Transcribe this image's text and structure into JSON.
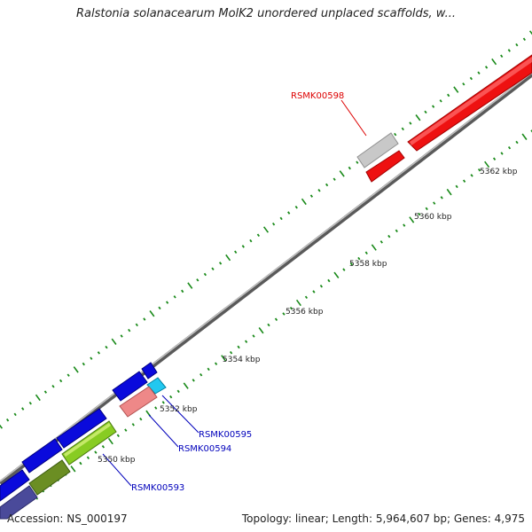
{
  "header": {
    "title": "Ralstonia solanacearum MolK2 unordered unplaced scaffolds, w..."
  },
  "footer": {
    "accession": "Accession: NS_000197",
    "summary": "Topology: linear; Length: 5,964,607 bp; Genes: 4,975"
  },
  "scale": {
    "unit": "kbp",
    "labels": [
      "5350 kbp",
      "5352 kbp",
      "5354 kbp",
      "5356 kbp",
      "5358 kbp",
      "5360 kbp",
      "5362 kbp"
    ]
  },
  "genes": {
    "rsmk00598": {
      "label": "RSMK00598",
      "color": "#dd0000"
    },
    "rsmk00595": {
      "label": "RSMK00595",
      "color": "#0000bb"
    },
    "rsmk00594": {
      "label": "RSMK00594",
      "color": "#0000bb"
    },
    "rsmk00593": {
      "label": "RSMK00593",
      "color": "#0000bb"
    }
  },
  "colors": {
    "backbone": "#888888",
    "tick": "#1a8a1a",
    "gene_blue": "#0a0adc",
    "gene_red": "#ee1111",
    "gene_pink": "#ee8888",
    "gene_cyan": "#22c8f0",
    "gene_gray": "#c8c8c8",
    "gene_green": "#88cc22",
    "gene_olive": "#6b8e23",
    "gene_slate": "#4a4a9a"
  }
}
